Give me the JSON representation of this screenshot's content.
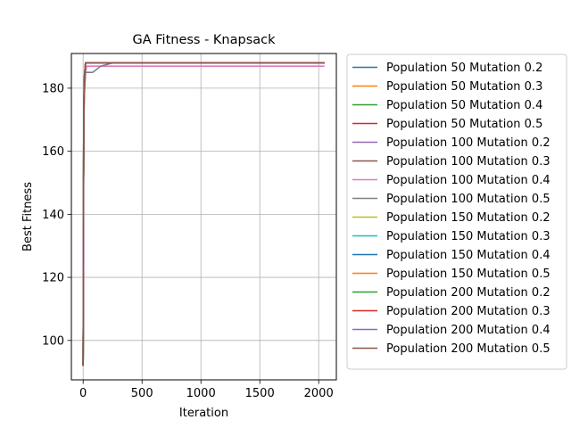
{
  "chart_data": {
    "type": "line",
    "title": "GA Fitness - Knapsack",
    "xlabel": "Iteration",
    "ylabel": "Best Fitness",
    "xlim": [
      -100,
      2150
    ],
    "ylim": [
      87.5,
      191
    ],
    "xticks": [
      0,
      500,
      1000,
      1500,
      2000
    ],
    "yticks": [
      100,
      120,
      140,
      160,
      180
    ],
    "grid": true,
    "legend": "outside-right",
    "series": [
      {
        "name": "Population 50 Mutation 0.2",
        "color": "#1f77b4",
        "x": [
          0,
          5,
          10,
          20,
          2050
        ],
        "y": [
          92,
          170,
          182,
          188,
          188
        ]
      },
      {
        "name": "Population 50 Mutation 0.3",
        "color": "#ff7f0e",
        "x": [
          0,
          5,
          10,
          20,
          2050
        ],
        "y": [
          92,
          168,
          181,
          188,
          188
        ]
      },
      {
        "name": "Population 50 Mutation 0.4",
        "color": "#2ca02c",
        "x": [
          0,
          5,
          10,
          20,
          2050
        ],
        "y": [
          92,
          167,
          180,
          188,
          188
        ]
      },
      {
        "name": "Population 50 Mutation 0.5",
        "color": "#d62728",
        "x": [
          0,
          5,
          10,
          20,
          2050
        ],
        "y": [
          92,
          166,
          180,
          188,
          188
        ]
      },
      {
        "name": "Population 100 Mutation 0.2",
        "color": "#9467bd",
        "x": [
          0,
          5,
          10,
          20,
          2050
        ],
        "y": [
          92,
          170,
          183,
          188,
          188
        ]
      },
      {
        "name": "Population 100 Mutation 0.3",
        "color": "#8c564b",
        "x": [
          0,
          5,
          10,
          20,
          2050
        ],
        "y": [
          92,
          169,
          182,
          188,
          188
        ]
      },
      {
        "name": "Population 100 Mutation 0.4",
        "color": "#e377c2",
        "x": [
          0,
          5,
          10,
          20,
          30,
          2050
        ],
        "y": [
          92,
          166,
          178,
          185,
          187,
          187
        ]
      },
      {
        "name": "Population 100 Mutation 0.5",
        "color": "#7f7f7f",
        "x": [
          0,
          5,
          10,
          20,
          40,
          80,
          150,
          250,
          2050
        ],
        "y": [
          92,
          166,
          178,
          185,
          185,
          185,
          187,
          188,
          188
        ]
      },
      {
        "name": "Population 150 Mutation 0.2",
        "color": "#bcbd22",
        "x": [
          0,
          5,
          10,
          20,
          2050
        ],
        "y": [
          92,
          171,
          183,
          188,
          188
        ]
      },
      {
        "name": "Population 150 Mutation 0.3",
        "color": "#17becf",
        "x": [
          0,
          5,
          10,
          20,
          2050
        ],
        "y": [
          92,
          170,
          182,
          188,
          188
        ]
      },
      {
        "name": "Population 150 Mutation 0.4",
        "color": "#1f77b4",
        "x": [
          0,
          5,
          10,
          20,
          2050
        ],
        "y": [
          92,
          169,
          182,
          188,
          188
        ]
      },
      {
        "name": "Population 150 Mutation 0.5",
        "color": "#ff7f0e",
        "x": [
          0,
          5,
          10,
          20,
          2050
        ],
        "y": [
          92,
          168,
          181,
          188,
          188
        ]
      },
      {
        "name": "Population 200 Mutation 0.2",
        "color": "#2ca02c",
        "x": [
          0,
          5,
          10,
          20,
          2050
        ],
        "y": [
          92,
          172,
          184,
          188,
          188
        ]
      },
      {
        "name": "Population 200 Mutation 0.3",
        "color": "#d62728",
        "x": [
          0,
          5,
          10,
          20,
          2050
        ],
        "y": [
          92,
          171,
          183,
          188,
          188
        ]
      },
      {
        "name": "Population 200 Mutation 0.4",
        "color": "#9467bd",
        "x": [
          0,
          5,
          10,
          20,
          2050
        ],
        "y": [
          92,
          170,
          183,
          188,
          188
        ]
      },
      {
        "name": "Population 200 Mutation 0.5",
        "color": "#8c564b",
        "x": [
          0,
          5,
          10,
          20,
          2050
        ],
        "y": [
          92,
          170,
          182,
          188,
          188
        ]
      }
    ]
  }
}
